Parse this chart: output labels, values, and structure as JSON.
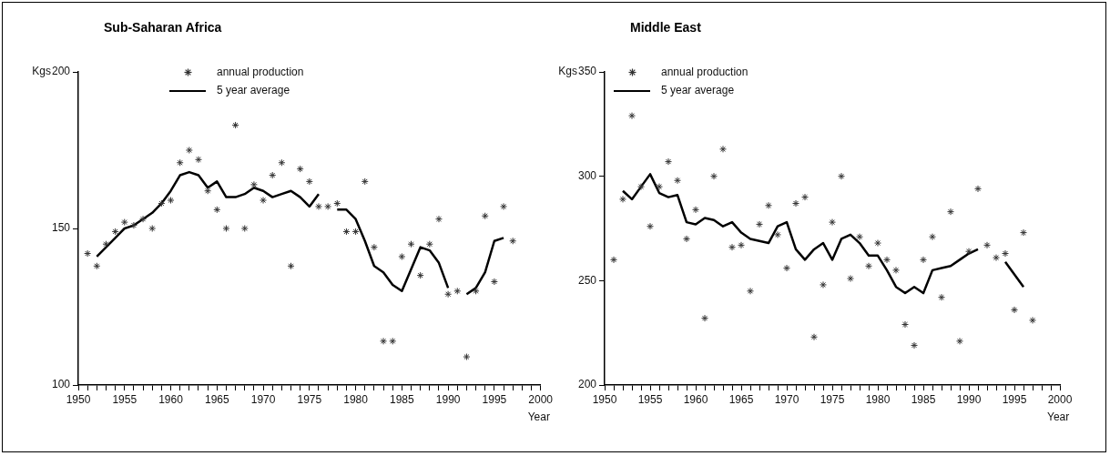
{
  "chart_data": [
    {
      "type": "scatter",
      "title": "Sub-Saharan Africa",
      "xlabel": "Year",
      "ylabel": "Kgs",
      "xlim": [
        1950,
        2000
      ],
      "ylim": [
        100,
        200
      ],
      "yticks": [
        100,
        150,
        200
      ],
      "grid": false,
      "legend": "top left",
      "xticks": [
        1950,
        {
          "value": 1951,
          "label": null
        },
        {
          "value": 1952,
          "label": null
        },
        {
          "value": 1953,
          "label": null
        },
        {
          "value": 1954,
          "label": null
        },
        1955,
        {
          "value": 1956,
          "label": null
        },
        {
          "value": 1957,
          "label": null
        },
        {
          "value": 1958,
          "label": null
        },
        {
          "value": 1959,
          "label": null
        },
        1960,
        {
          "value": 1961,
          "label": null
        },
        {
          "value": 1962,
          "label": null
        },
        {
          "value": 1963,
          "label": null
        },
        {
          "value": 1964,
          "label": null
        },
        1965,
        {
          "value": 1966,
          "label": null
        },
        {
          "value": 1967,
          "label": null
        },
        {
          "value": 1968,
          "label": null
        },
        {
          "value": 1969,
          "label": null
        },
        1970,
        {
          "value": 1971,
          "label": null
        },
        {
          "value": 1972,
          "label": null
        },
        {
          "value": 1973,
          "label": null
        },
        {
          "value": 1974,
          "label": null
        },
        1975,
        {
          "value": 1976,
          "label": null
        },
        {
          "value": 1977,
          "label": null
        },
        {
          "value": 1978,
          "label": null
        },
        {
          "value": 1979,
          "label": null
        },
        1980,
        {
          "value": 1981,
          "label": null
        },
        {
          "value": 1982,
          "label": null
        },
        {
          "value": 1983,
          "label": null
        },
        {
          "value": 1984,
          "label": null
        },
        1985,
        {
          "value": 1986,
          "label": null
        },
        {
          "value": 1987,
          "label": null
        },
        {
          "value": 1988,
          "label": null
        },
        {
          "value": 1989,
          "label": null
        },
        1990,
        {
          "value": 1991,
          "label": null
        },
        {
          "value": 1992,
          "label": null
        },
        {
          "value": 1993,
          "label": null
        },
        {
          "value": 1994,
          "label": null
        },
        1995,
        {
          "value": 1996,
          "label": null
        },
        {
          "value": 1997,
          "label": null
        },
        {
          "value": 1998,
          "label": null
        },
        {
          "value": 1999,
          "label": null
        },
        2000
      ],
      "series": [
        {
          "name": "annual production",
          "type": "scatter",
          "marker": "cross",
          "color": "#333333",
          "x": [
            1951,
            1952,
            1953,
            1954,
            1955,
            1956,
            1957,
            1958,
            1959,
            1960,
            1961,
            1962,
            1963,
            1964,
            1965,
            1966,
            1967,
            1968,
            1969,
            1970,
            1971,
            1972,
            1973,
            1974,
            1975,
            1976,
            1977,
            1978,
            1979,
            1980,
            1981,
            1982,
            1983,
            1984,
            1985,
            1986,
            1987,
            1988,
            1989,
            1990,
            1991,
            1992,
            1993,
            1994,
            1995,
            1996,
            1997
          ],
          "values": [
            142,
            138,
            145,
            149,
            152,
            151,
            153,
            150,
            158,
            159,
            171,
            175,
            172,
            162,
            156,
            150,
            183,
            150,
            164,
            159,
            167,
            171,
            138,
            169,
            165,
            157,
            157,
            158,
            149,
            149,
            165,
            144,
            114,
            114,
            141,
            145,
            135,
            145,
            153,
            129,
            130,
            109,
            130,
            154,
            133,
            157,
            146
          ]
        },
        {
          "name": "5 year average",
          "type": "line",
          "marker": "none",
          "color": "#000000",
          "x": [
            1952,
            1953,
            1954,
            1955,
            1956,
            1957,
            1958,
            1959,
            1960,
            1961,
            1962,
            1963,
            1964,
            1965,
            1966,
            1967,
            1968,
            1969,
            1970,
            1971,
            1972,
            1973,
            1974,
            1975,
            1976,
            1977,
            1978,
            1979,
            1980,
            1981,
            1982,
            1983,
            1984,
            1985,
            1986,
            1987,
            1988,
            1989,
            1990,
            1991,
            1992,
            1993,
            1994,
            1995,
            1996
          ],
          "values": [
            141,
            144,
            147,
            150,
            151,
            153,
            155,
            158,
            162,
            167,
            168,
            167,
            163,
            165,
            160,
            160,
            161,
            163,
            162,
            160,
            161,
            162,
            160,
            157,
            161,
            null,
            156,
            156,
            153,
            146,
            138,
            136,
            132,
            130,
            137,
            144,
            143,
            139,
            131,
            null,
            129,
            131,
            136,
            146,
            147
          ]
        }
      ]
    },
    {
      "type": "scatter",
      "title": "Middle East",
      "xlabel": "Year",
      "ylabel": "Kgs",
      "xlim": [
        1950,
        2000
      ],
      "ylim": [
        200,
        350
      ],
      "yticks": [
        200,
        250,
        300,
        350
      ],
      "grid": false,
      "legend": "top left",
      "xticks": [
        1950,
        {
          "value": 1951,
          "label": null
        },
        {
          "value": 1952,
          "label": null
        },
        {
          "value": 1953,
          "label": null
        },
        {
          "value": 1954,
          "label": null
        },
        1955,
        {
          "value": 1956,
          "label": null
        },
        {
          "value": 1957,
          "label": null
        },
        {
          "value": 1958,
          "label": null
        },
        {
          "value": 1959,
          "label": null
        },
        1960,
        {
          "value": 1961,
          "label": null
        },
        {
          "value": 1962,
          "label": null
        },
        {
          "value": 1963,
          "label": null
        },
        {
          "value": 1964,
          "label": null
        },
        1965,
        {
          "value": 1966,
          "label": null
        },
        {
          "value": 1967,
          "label": null
        },
        {
          "value": 1968,
          "label": null
        },
        {
          "value": 1969,
          "label": null
        },
        1970,
        {
          "value": 1971,
          "label": null
        },
        {
          "value": 1972,
          "label": null
        },
        {
          "value": 1973,
          "label": null
        },
        {
          "value": 1974,
          "label": null
        },
        1975,
        {
          "value": 1976,
          "label": null
        },
        {
          "value": 1977,
          "label": null
        },
        {
          "value": 1978,
          "label": null
        },
        {
          "value": 1979,
          "label": null
        },
        1980,
        {
          "value": 1981,
          "label": null
        },
        {
          "value": 1982,
          "label": null
        },
        {
          "value": 1983,
          "label": null
        },
        {
          "value": 1984,
          "label": null
        },
        1985,
        {
          "value": 1986,
          "label": null
        },
        {
          "value": 1987,
          "label": null
        },
        {
          "value": 1988,
          "label": null
        },
        {
          "value": 1989,
          "label": null
        },
        1990,
        {
          "value": 1991,
          "label": null
        },
        {
          "value": 1992,
          "label": null
        },
        {
          "value": 1993,
          "label": null
        },
        {
          "value": 1994,
          "label": null
        },
        1995,
        {
          "value": 1996,
          "label": null
        },
        {
          "value": 1997,
          "label": null
        },
        {
          "value": 1998,
          "label": null
        },
        {
          "value": 1999,
          "label": null
        },
        2000
      ],
      "series": [
        {
          "name": "annual production",
          "type": "scatter",
          "marker": "cross",
          "color": "#333333",
          "x": [
            1951,
            1952,
            1953,
            1954,
            1955,
            1956,
            1957,
            1958,
            1959,
            1960,
            1961,
            1962,
            1963,
            1964,
            1965,
            1966,
            1967,
            1968,
            1969,
            1970,
            1971,
            1972,
            1973,
            1974,
            1975,
            1976,
            1977,
            1978,
            1979,
            1980,
            1981,
            1982,
            1983,
            1984,
            1985,
            1986,
            1987,
            1988,
            1989,
            1990,
            1991,
            1992,
            1993,
            1994,
            1995,
            1996,
            1997
          ],
          "values": [
            260,
            289,
            329,
            295,
            276,
            295,
            307,
            298,
            270,
            284,
            232,
            300,
            313,
            266,
            267,
            245,
            277,
            286,
            272,
            256,
            287,
            290,
            223,
            248,
            278,
            300,
            251,
            271,
            257,
            268,
            260,
            255,
            229,
            219,
            260,
            271,
            242,
            283,
            221,
            264,
            294,
            267,
            261,
            263,
            236,
            273,
            231
          ]
        },
        {
          "name": "5 year average",
          "type": "line",
          "marker": "none",
          "color": "#000000",
          "x": [
            1952,
            1953,
            1954,
            1955,
            1956,
            1957,
            1958,
            1959,
            1960,
            1961,
            1962,
            1963,
            1964,
            1965,
            1966,
            1967,
            1968,
            1969,
            1970,
            1971,
            1972,
            1973,
            1974,
            1975,
            1976,
            1977,
            1978,
            1979,
            1980,
            1981,
            1982,
            1983,
            1984,
            1985,
            1986,
            1987,
            1988,
            1989,
            1990,
            1991,
            1992,
            1993,
            1994,
            1995,
            1996
          ],
          "values": [
            293,
            289,
            295,
            301,
            292,
            290,
            291,
            278,
            277,
            280,
            279,
            276,
            278,
            273,
            270,
            269,
            268,
            276,
            278,
            265,
            260,
            265,
            268,
            260,
            270,
            272,
            268,
            262,
            262,
            255,
            247,
            244,
            247,
            244,
            255,
            256,
            257,
            260,
            263,
            265,
            null,
            null,
            259,
            253,
            247
          ]
        }
      ]
    }
  ]
}
